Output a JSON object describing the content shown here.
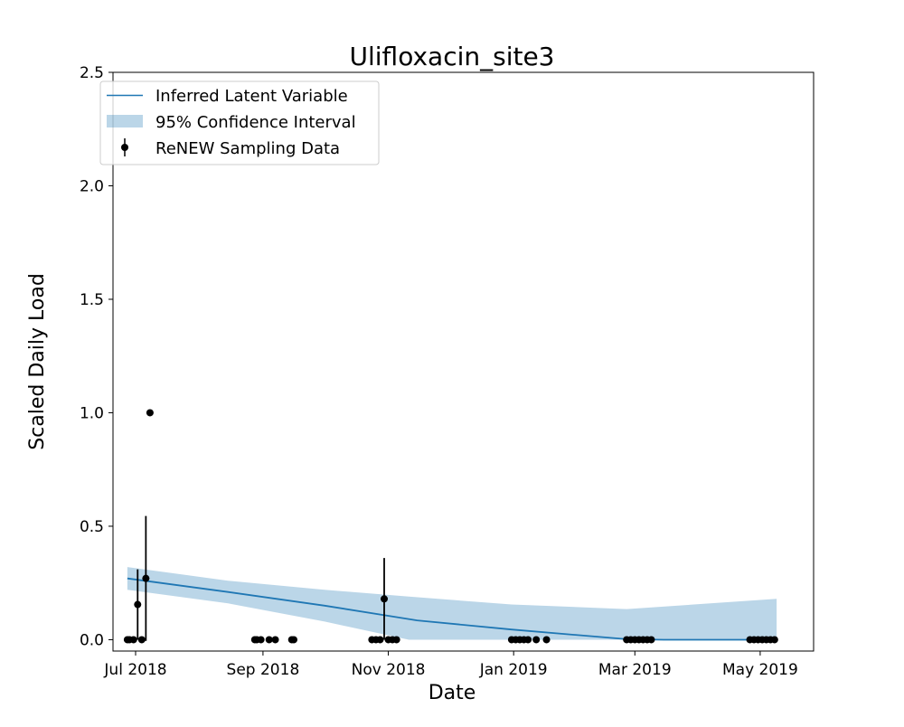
{
  "chart_data": {
    "type": "line",
    "title": "Ulifloxacin_site3",
    "xlabel": "Date",
    "ylabel": "Scaled Daily Load",
    "ylim": [
      -0.05,
      2.5
    ],
    "xlim": [
      "2018-06-20",
      "2019-05-27"
    ],
    "x_ticks": [
      {
        "date": "2018-07-01",
        "label": "Jul 2018"
      },
      {
        "date": "2018-09-01",
        "label": "Sep 2018"
      },
      {
        "date": "2018-11-01",
        "label": "Nov 2018"
      },
      {
        "date": "2019-01-01",
        "label": "Jan 2019"
      },
      {
        "date": "2019-03-01",
        "label": "Mar 2019"
      },
      {
        "date": "2019-05-01",
        "label": "May 2019"
      }
    ],
    "y_ticks": [
      {
        "value": 0.0,
        "label": "0.0"
      },
      {
        "value": 0.5,
        "label": "0.5"
      },
      {
        "value": 1.0,
        "label": "1.0"
      },
      {
        "value": 1.5,
        "label": "1.5"
      },
      {
        "value": 2.0,
        "label": "2.0"
      },
      {
        "value": 2.5,
        "label": "2.5"
      }
    ],
    "grid": false,
    "legend": {
      "position": "top-left",
      "entries": [
        "Inferred Latent Variable",
        "95% Confidence Interval",
        "ReNEW Sampling Data"
      ]
    },
    "colors": {
      "line": "#1f77b4",
      "band": "#1f77b4",
      "band_opacity": 0.3,
      "points": "#000000"
    },
    "series": [
      {
        "name": "Inferred Latent Variable",
        "kind": "line",
        "points": [
          {
            "x": "2018-06-27",
            "y": 0.27
          },
          {
            "x": "2018-08-15",
            "y": 0.21
          },
          {
            "x": "2018-10-01",
            "y": 0.15
          },
          {
            "x": "2018-11-15",
            "y": 0.085
          },
          {
            "x": "2018-12-31",
            "y": 0.045
          },
          {
            "x": "2019-02-25",
            "y": 0.002
          },
          {
            "x": "2019-03-15",
            "y": 0.0
          },
          {
            "x": "2019-05-09",
            "y": 0.0
          }
        ]
      },
      {
        "name": "95% Confidence Interval",
        "kind": "band",
        "points": [
          {
            "x": "2018-06-27",
            "lo": 0.22,
            "hi": 0.32
          },
          {
            "x": "2018-08-15",
            "lo": 0.16,
            "hi": 0.26
          },
          {
            "x": "2018-10-01",
            "lo": 0.08,
            "hi": 0.22
          },
          {
            "x": "2018-11-11",
            "lo": 0.0,
            "hi": 0.19
          },
          {
            "x": "2018-12-31",
            "lo": 0.0,
            "hi": 0.155
          },
          {
            "x": "2019-02-25",
            "lo": 0.0,
            "hi": 0.135
          },
          {
            "x": "2019-05-09",
            "lo": 0.0,
            "hi": 0.18
          }
        ]
      },
      {
        "name": "ReNEW Sampling Data",
        "kind": "scatter",
        "points": [
          {
            "x": "2018-06-27",
            "y": 0.0
          },
          {
            "x": "2018-06-28",
            "y": 0.0
          },
          {
            "x": "2018-06-30",
            "y": 0.0
          },
          {
            "x": "2018-07-02",
            "y": 0.155,
            "err": 0.155
          },
          {
            "x": "2018-07-04",
            "y": 0.0
          },
          {
            "x": "2018-07-06",
            "y": 0.27,
            "err": 0.275
          },
          {
            "x": "2018-07-08",
            "y": 1.0
          },
          {
            "x": "2018-08-28",
            "y": 0.0
          },
          {
            "x": "2018-08-29",
            "y": 0.0
          },
          {
            "x": "2018-08-31",
            "y": 0.0
          },
          {
            "x": "2018-09-04",
            "y": 0.0
          },
          {
            "x": "2018-09-07",
            "y": 0.0
          },
          {
            "x": "2018-09-15",
            "y": 0.0
          },
          {
            "x": "2018-09-16",
            "y": 0.0
          },
          {
            "x": "2018-10-24",
            "y": 0.0
          },
          {
            "x": "2018-10-26",
            "y": 0.0
          },
          {
            "x": "2018-10-28",
            "y": 0.0
          },
          {
            "x": "2018-10-30",
            "y": 0.18,
            "err": 0.18
          },
          {
            "x": "2018-11-01",
            "y": 0.0
          },
          {
            "x": "2018-11-03",
            "y": 0.0
          },
          {
            "x": "2018-11-05",
            "y": 0.0
          },
          {
            "x": "2018-12-31",
            "y": 0.0
          },
          {
            "x": "2019-01-02",
            "y": 0.0
          },
          {
            "x": "2019-01-04",
            "y": 0.0
          },
          {
            "x": "2019-01-06",
            "y": 0.0
          },
          {
            "x": "2019-01-08",
            "y": 0.0
          },
          {
            "x": "2019-01-12",
            "y": 0.0
          },
          {
            "x": "2019-01-17",
            "y": 0.0
          },
          {
            "x": "2019-02-25",
            "y": 0.0
          },
          {
            "x": "2019-02-27",
            "y": 0.0
          },
          {
            "x": "2019-03-01",
            "y": 0.0
          },
          {
            "x": "2019-03-03",
            "y": 0.0
          },
          {
            "x": "2019-03-05",
            "y": 0.0
          },
          {
            "x": "2019-03-07",
            "y": 0.0
          },
          {
            "x": "2019-03-09",
            "y": 0.0
          },
          {
            "x": "2019-04-26",
            "y": 0.0
          },
          {
            "x": "2019-04-28",
            "y": 0.0
          },
          {
            "x": "2019-04-30",
            "y": 0.0
          },
          {
            "x": "2019-05-02",
            "y": 0.0
          },
          {
            "x": "2019-05-04",
            "y": 0.0
          },
          {
            "x": "2019-05-06",
            "y": 0.0
          },
          {
            "x": "2019-05-08",
            "y": 0.0
          }
        ]
      }
    ]
  }
}
